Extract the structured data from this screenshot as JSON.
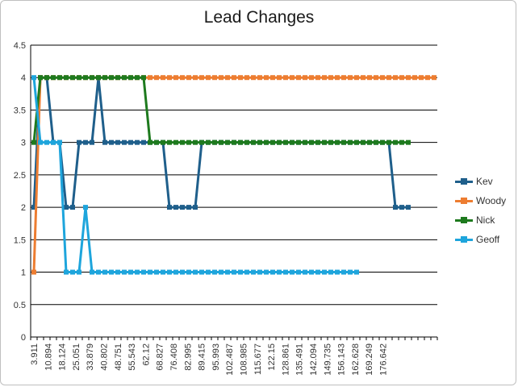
{
  "chart_data": {
    "type": "line",
    "title": "Lead Changes",
    "xlabel": "",
    "ylabel": "",
    "ylim": [
      0,
      4.5
    ],
    "yticks": [
      "0",
      "0.5",
      "1",
      "1.5",
      "2",
      "2.5",
      "3",
      "3.5",
      "4",
      "4.5"
    ],
    "grid": true,
    "legend_position": "right",
    "x_tick_labels": [
      "3.911",
      "10.894",
      "18.124",
      "25.051",
      "33.879",
      "40.802",
      "48.751",
      "55.543",
      "62.12",
      "68.827",
      "76.408",
      "82.995",
      "89.415",
      "95.993",
      "102.487",
      "108.985",
      "115.677",
      "122.15",
      "128.861",
      "135.491",
      "142.094",
      "149.735",
      "156.143",
      "162.628",
      "169.249",
      "176.642",
      "",
      ""
    ],
    "series": [
      {
        "name": "Kev",
        "color": "#1f5f8b",
        "values": [
          2,
          4,
          4,
          3,
          3,
          2,
          2,
          3,
          3,
          3,
          4,
          3,
          3,
          3,
          3,
          3,
          3,
          3,
          3,
          3,
          3,
          2,
          2,
          2,
          2,
          2,
          3,
          3,
          3,
          3,
          3,
          3,
          3,
          3,
          3,
          3,
          3,
          3,
          3,
          3,
          3,
          3,
          3,
          3,
          3,
          3,
          3,
          3,
          3,
          3,
          3,
          3,
          3,
          3,
          3,
          3,
          2,
          2,
          2
        ]
      },
      {
        "name": "Woody",
        "color": "#ed7d31",
        "values": [
          1,
          4,
          4,
          4,
          4,
          4,
          4,
          4,
          4,
          4,
          4,
          4,
          4,
          4,
          4,
          4,
          4,
          4,
          4,
          4,
          4,
          4,
          4,
          4,
          4,
          4,
          4,
          4,
          4,
          4,
          4,
          4,
          4,
          4,
          4,
          4,
          4,
          4,
          4,
          4,
          4,
          4,
          4,
          4,
          4,
          4,
          4,
          4,
          4,
          4,
          4,
          4,
          4,
          4,
          4,
          4,
          4,
          4,
          4,
          4,
          4,
          4,
          4
        ]
      },
      {
        "name": "Nick",
        "color": "#1e7a1e",
        "values": [
          3,
          4,
          4,
          4,
          4,
          4,
          4,
          4,
          4,
          4,
          4,
          4,
          4,
          4,
          4,
          4,
          4,
          4,
          3,
          3,
          3,
          3,
          3,
          3,
          3,
          3,
          3,
          3,
          3,
          3,
          3,
          3,
          3,
          3,
          3,
          3,
          3,
          3,
          3,
          3,
          3,
          3,
          3,
          3,
          3,
          3,
          3,
          3,
          3,
          3,
          3,
          3,
          3,
          3,
          3,
          3,
          3,
          3,
          3
        ]
      },
      {
        "name": "Geoff",
        "color": "#1ea5dc",
        "values": [
          4,
          3,
          3,
          3,
          3,
          1,
          1,
          1,
          2,
          1,
          1,
          1,
          1,
          1,
          1,
          1,
          1,
          1,
          1,
          1,
          1,
          1,
          1,
          1,
          1,
          1,
          1,
          1,
          1,
          1,
          1,
          1,
          1,
          1,
          1,
          1,
          1,
          1,
          1,
          1,
          1,
          1,
          1,
          1,
          1,
          1,
          1,
          1,
          1,
          1,
          1
        ]
      }
    ]
  }
}
